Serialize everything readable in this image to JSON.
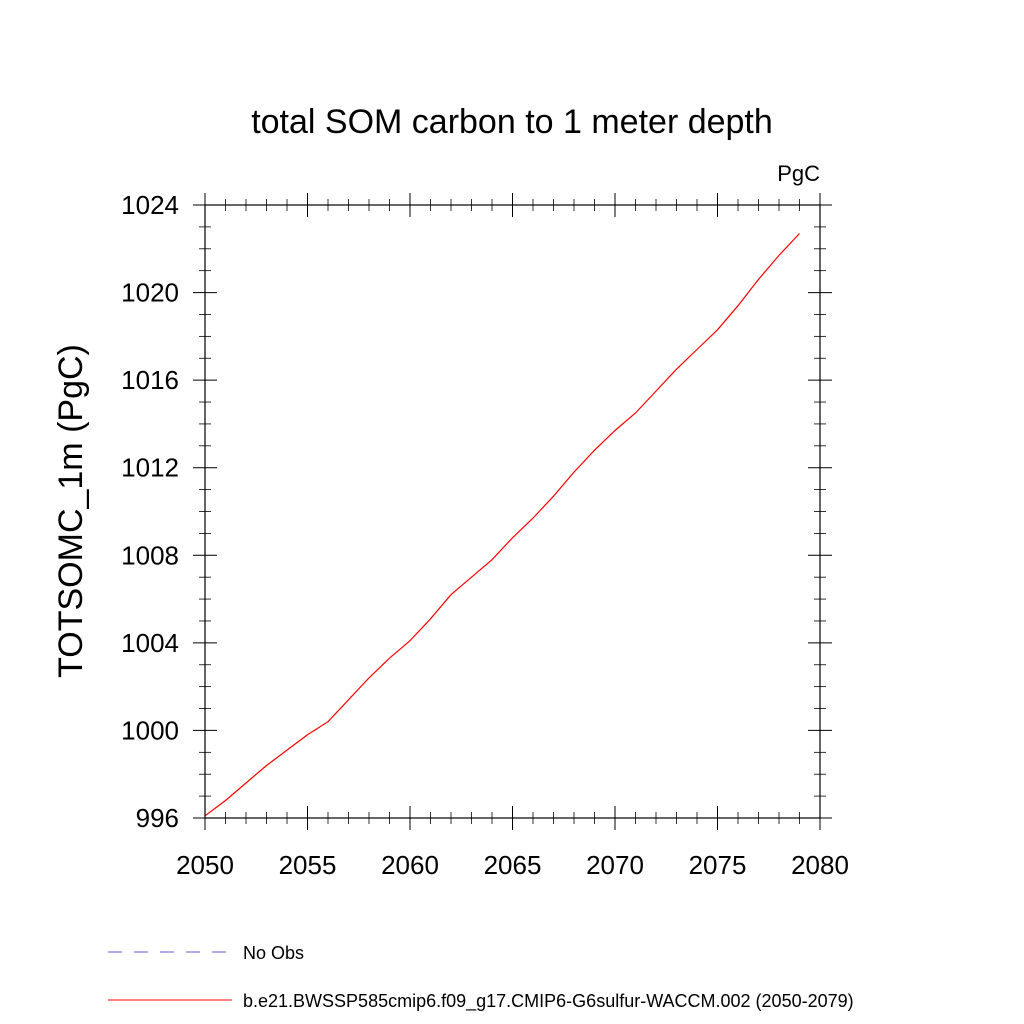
{
  "chart_data": {
    "type": "line",
    "title": "total SOM carbon to 1 meter depth",
    "units_label": "PgC",
    "ylabel": "TOTSOMC_1m  (PgC)",
    "xlabel": "",
    "xlim": [
      2050,
      2080
    ],
    "ylim": [
      996,
      1024
    ],
    "x_major_ticks": [
      2050,
      2055,
      2060,
      2065,
      2070,
      2075,
      2080
    ],
    "x_tick_labels": [
      "2050",
      "2055",
      "2060",
      "2065",
      "2070",
      "2075",
      "2080"
    ],
    "y_major_ticks": [
      996,
      1000,
      1004,
      1008,
      1012,
      1016,
      1020,
      1024
    ],
    "y_tick_labels": [
      "996",
      "1000",
      "1004",
      "1008",
      "1012",
      "1016",
      "1020",
      "1024"
    ],
    "grid": false,
    "legend_position": "bottom",
    "series": [
      {
        "name": "No Obs",
        "color": "#6a5acd",
        "dash": "dashed",
        "x": [],
        "y": []
      },
      {
        "name": "b.e21.BWSSP585cmip6.f09_g17.CMIP6-G6sulfur-WACCM.002 (2050-2079)",
        "color": "#ff0000",
        "dash": "solid",
        "x": [
          2050,
          2051,
          2052,
          2053,
          2054,
          2055,
          2056,
          2057,
          2058,
          2059,
          2060,
          2061,
          2062,
          2063,
          2064,
          2065,
          2066,
          2067,
          2068,
          2069,
          2070,
          2071,
          2072,
          2073,
          2074,
          2075,
          2076,
          2077,
          2078,
          2079
        ],
        "y": [
          996.1,
          996.8,
          997.6,
          998.4,
          999.1,
          999.8,
          1000.4,
          1001.4,
          1002.4,
          1003.3,
          1004.1,
          1005.1,
          1006.2,
          1007.0,
          1007.8,
          1008.8,
          1009.7,
          1010.7,
          1011.8,
          1012.8,
          1013.7,
          1014.5,
          1015.5,
          1016.5,
          1017.4,
          1018.3,
          1019.4,
          1020.6,
          1021.7,
          1022.7
        ]
      }
    ]
  }
}
